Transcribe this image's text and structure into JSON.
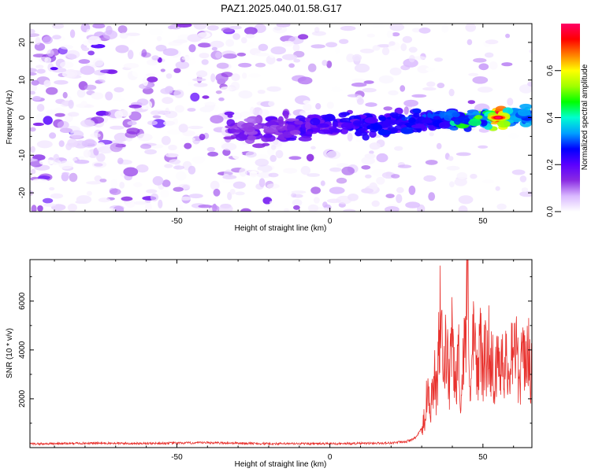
{
  "title": "PAZ1.2025.040.01.58.G17",
  "chart_data": [
    {
      "type": "heatmap",
      "xlabel": "Height of straight line (km)",
      "ylabel": "Frequency (Hz)",
      "xlim": [
        -98,
        66
      ],
      "ylim": [
        -25,
        25
      ],
      "xticks": [
        -50,
        0,
        50
      ],
      "yticks": [
        -20,
        -10,
        0,
        10,
        20
      ],
      "colorbar": {
        "label": "Normalized spectral amplitude",
        "range": [
          0,
          0.8
        ],
        "ticks": [
          0.0,
          0.2,
          0.4,
          0.6
        ],
        "colors": [
          "#ffffff",
          "#d9b8ff",
          "#8a2be2",
          "#5a00ff",
          "#0000ff",
          "#00a0ff",
          "#00ffd0",
          "#00ff00",
          "#a0ff00",
          "#ffff00",
          "#ff8000",
          "#ff0000",
          "#ff0066"
        ]
      },
      "ridge": {
        "x_start": -33,
        "x_end": 66,
        "freq_start_hz": -3.5,
        "freq_end_hz": 0.5,
        "peak_x": 55,
        "peak_amplitude": 0.8
      }
    },
    {
      "type": "line",
      "xlabel": "Height of straight line (km)",
      "ylabel": "SNR (10 * v/v)",
      "xlim": [
        -98,
        66
      ],
      "ylim": [
        0,
        7700
      ],
      "xticks": [
        -50,
        0,
        50
      ],
      "yticks": [
        2000,
        4000,
        6000
      ],
      "line_color": "#e8322e",
      "series": [
        {
          "x": [
            -98,
            -80,
            -60,
            -40,
            -20,
            0,
            10,
            20,
            25,
            28,
            30,
            31,
            32,
            33,
            34,
            35,
            36,
            37,
            38,
            39,
            40,
            41,
            42,
            43,
            44,
            45,
            46,
            47,
            48,
            49,
            50,
            52,
            54,
            56,
            58,
            60,
            62,
            64,
            66
          ],
          "y": [
            150,
            180,
            170,
            200,
            160,
            160,
            170,
            190,
            250,
            400,
            800,
            1500,
            3000,
            2200,
            3700,
            2500,
            6500,
            3500,
            5000,
            3000,
            5500,
            3000,
            4500,
            2500,
            5500,
            7700,
            3000,
            5500,
            3500,
            5200,
            4000,
            5000,
            3500,
            4800,
            3800,
            5500,
            3500,
            5000,
            3800
          ]
        }
      ]
    }
  ]
}
